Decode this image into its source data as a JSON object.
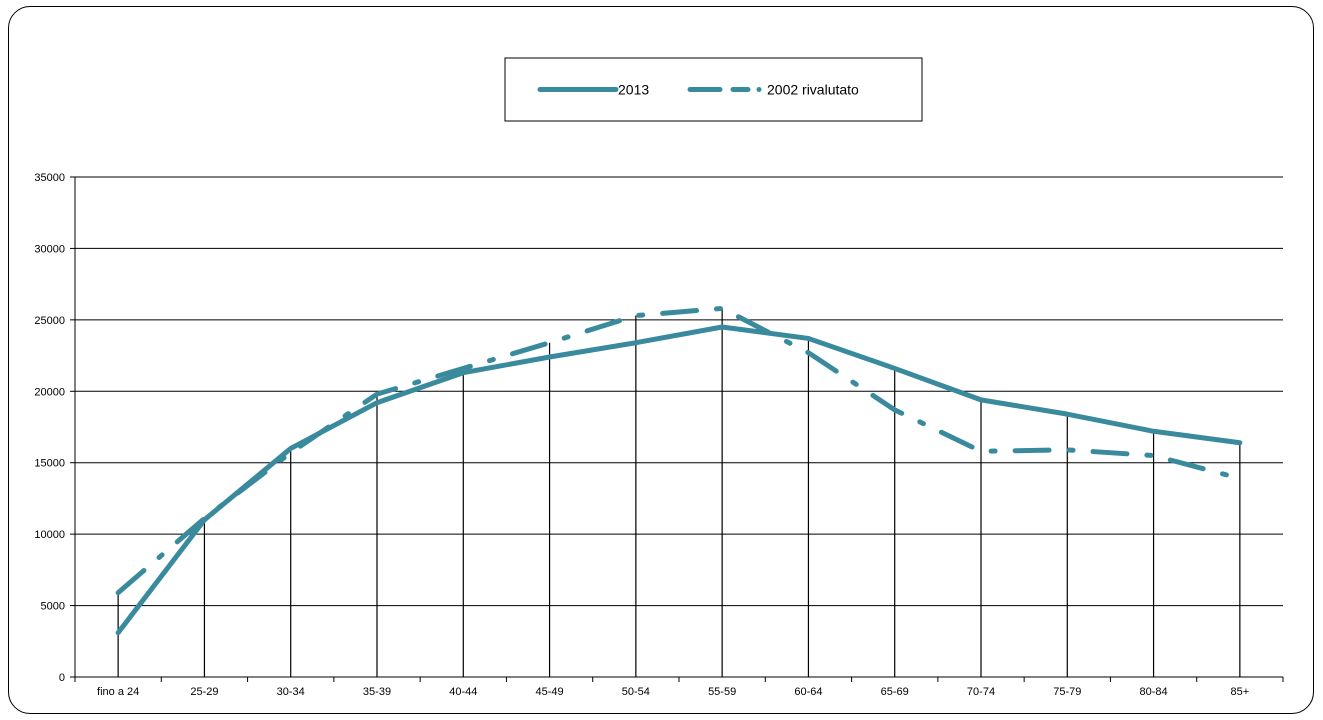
{
  "chart_data": {
    "type": "line",
    "categories": [
      "fino a 24",
      "25-29",
      "30-34",
      "35-39",
      "40-44",
      "45-49",
      "50-54",
      "55-59",
      "60-64",
      "65-69",
      "70-74",
      "75-79",
      "80-84",
      "85+"
    ],
    "series": [
      {
        "name": "2013",
        "style": "solid",
        "values": [
          3100,
          11000,
          16000,
          19200,
          21300,
          22400,
          23400,
          24500,
          23700,
          21600,
          19400,
          18400,
          17200,
          16400
        ]
      },
      {
        "name": "2002 rivalutato",
        "style": "dash-dot",
        "values": [
          5900,
          11100,
          15700,
          19800,
          21600,
          23400,
          25300,
          25800,
          22700,
          18700,
          15800,
          15900,
          15500,
          13900
        ]
      }
    ],
    "ylim": [
      0,
      35000
    ],
    "yticks": [
      0,
      5000,
      10000,
      15000,
      20000,
      25000,
      30000,
      35000
    ],
    "grid": "horizontal",
    "legend_position": "top-center",
    "color": "#3a8a9e"
  }
}
